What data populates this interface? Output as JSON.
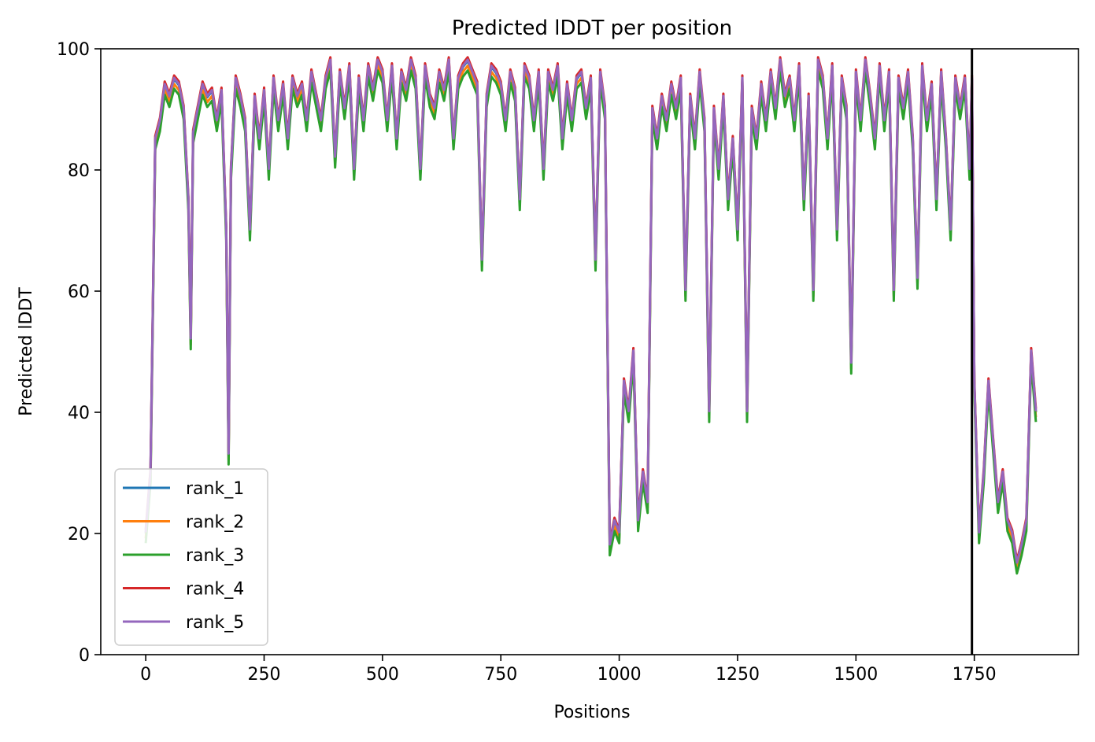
{
  "chart_data": {
    "type": "line",
    "title": "Predicted lDDT per position",
    "xlabel": "Positions",
    "ylabel": "Predicted lDDT",
    "xlim": [
      -95,
      1970
    ],
    "ylim": [
      0,
      100
    ],
    "xticks": [
      "0",
      "250",
      "500",
      "750",
      "1000",
      "1250",
      "1500",
      "1750"
    ],
    "xtick_values": [
      0,
      250,
      500,
      750,
      1000,
      1250,
      1500,
      1750
    ],
    "yticks": [
      "0",
      "20",
      "40",
      "60",
      "80",
      "100"
    ],
    "ytick_values": [
      0,
      20,
      40,
      60,
      80,
      100
    ],
    "grid": false,
    "legend_position": "lower-left",
    "vertical_line": {
      "x": 1745,
      "color": "#000000"
    },
    "colors": [
      "#1f77b4",
      "#ff7f0e",
      "#2ca02c",
      "#d62728",
      "#9467bd"
    ],
    "series": [
      {
        "name": "rank_1",
        "offset": 0.0
      },
      {
        "name": "rank_2",
        "offset": -0.8
      },
      {
        "name": "rank_3",
        "offset": -1.6
      },
      {
        "name": "rank_4",
        "offset": 0.6
      },
      {
        "name": "rank_5",
        "offset": 0.2
      }
    ],
    "x": [
      0,
      10,
      20,
      30,
      40,
      50,
      60,
      70,
      80,
      90,
      95,
      100,
      110,
      120,
      130,
      140,
      150,
      160,
      170,
      175,
      180,
      190,
      200,
      210,
      220,
      230,
      240,
      250,
      260,
      270,
      280,
      290,
      300,
      310,
      320,
      330,
      340,
      350,
      360,
      370,
      380,
      390,
      400,
      410,
      420,
      430,
      440,
      450,
      460,
      470,
      480,
      490,
      500,
      510,
      520,
      530,
      540,
      550,
      560,
      570,
      580,
      590,
      600,
      610,
      620,
      630,
      640,
      650,
      660,
      670,
      680,
      690,
      700,
      710,
      720,
      730,
      740,
      750,
      760,
      770,
      780,
      790,
      800,
      810,
      820,
      830,
      840,
      850,
      860,
      870,
      880,
      890,
      900,
      910,
      920,
      930,
      940,
      950,
      960,
      970,
      980,
      990,
      1000,
      1010,
      1020,
      1030,
      1040,
      1050,
      1060,
      1070,
      1080,
      1090,
      1100,
      1110,
      1120,
      1130,
      1140,
      1150,
      1160,
      1170,
      1180,
      1190,
      1200,
      1210,
      1220,
      1230,
      1240,
      1250,
      1260,
      1270,
      1280,
      1290,
      1300,
      1310,
      1320,
      1330,
      1340,
      1350,
      1360,
      1370,
      1380,
      1390,
      1400,
      1410,
      1420,
      1430,
      1440,
      1450,
      1460,
      1470,
      1480,
      1490,
      1500,
      1510,
      1520,
      1530,
      1540,
      1550,
      1560,
      1570,
      1580,
      1590,
      1600,
      1610,
      1620,
      1630,
      1640,
      1650,
      1660,
      1670,
      1680,
      1690,
      1700,
      1710,
      1720,
      1730,
      1740,
      1745,
      1750,
      1760,
      1770,
      1780,
      1790,
      1800,
      1810,
      1820,
      1830,
      1840,
      1850,
      1860,
      1870,
      1880
    ],
    "y": [
      20,
      30,
      85,
      88,
      94,
      92,
      95,
      94,
      90,
      75,
      52,
      86,
      90,
      94,
      92,
      93,
      88,
      93,
      70,
      33,
      80,
      95,
      92,
      88,
      70,
      92,
      85,
      93,
      80,
      95,
      88,
      94,
      85,
      95,
      92,
      94,
      88,
      96,
      92,
      88,
      95,
      98,
      82,
      96,
      90,
      97,
      80,
      95,
      88,
      97,
      93,
      98,
      96,
      88,
      97,
      85,
      96,
      93,
      98,
      95,
      80,
      97,
      92,
      90,
      96,
      93,
      98,
      85,
      95,
      97,
      98,
      96,
      94,
      65,
      92,
      97,
      96,
      94,
      88,
      96,
      93,
      75,
      97,
      95,
      88,
      96,
      80,
      96,
      93,
      97,
      85,
      94,
      88,
      95,
      96,
      90,
      95,
      65,
      96,
      90,
      18,
      22,
      20,
      45,
      40,
      50,
      22,
      30,
      25,
      90,
      85,
      92,
      88,
      94,
      90,
      95,
      60,
      92,
      85,
      96,
      88,
      40,
      90,
      80,
      92,
      75,
      85,
      70,
      95,
      40,
      90,
      85,
      94,
      88,
      96,
      90,
      98,
      92,
      95,
      88,
      97,
      75,
      92,
      60,
      98,
      95,
      85,
      97,
      70,
      95,
      90,
      48,
      96,
      88,
      98,
      92,
      85,
      97,
      88,
      96,
      60,
      95,
      90,
      96,
      85,
      62,
      97,
      88,
      94,
      75,
      96,
      85,
      70,
      95,
      90,
      95,
      80,
      95,
      45,
      20,
      30,
      45,
      35,
      25,
      30,
      22,
      20,
      15,
      18,
      22,
      50,
      40
    ]
  }
}
